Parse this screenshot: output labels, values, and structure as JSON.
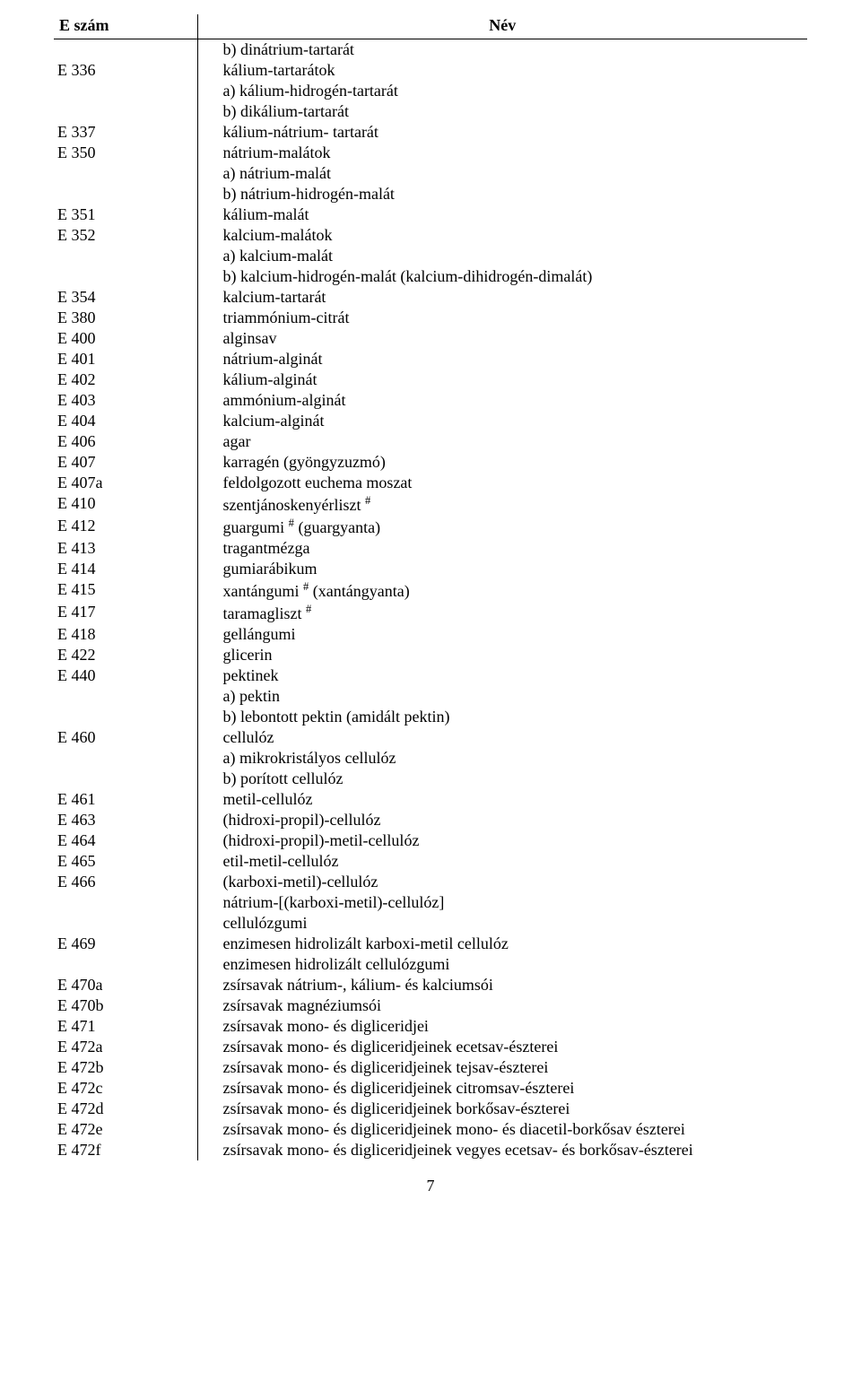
{
  "headers": {
    "code": "E szám",
    "name": "Név"
  },
  "page_number": "7",
  "rows": [
    {
      "code": "",
      "name": "b) dinátrium-tartarát"
    },
    {
      "code": "E 336",
      "name": "kálium-tartarátok"
    },
    {
      "code": "",
      "name": "a) kálium-hidrogén-tartarát"
    },
    {
      "code": "",
      "name": "b) dikálium-tartarát"
    },
    {
      "code": "E 337",
      "name": "kálium-nátrium- tartarát"
    },
    {
      "code": "E 350",
      "name": "nátrium-malátok"
    },
    {
      "code": "",
      "name": "a) nátrium-malát"
    },
    {
      "code": "",
      "name": "b) nátrium-hidrogén-malát"
    },
    {
      "code": "E 351",
      "name": "kálium-malát"
    },
    {
      "code": "E 352",
      "name": "kalcium-malátok"
    },
    {
      "code": "",
      "name": "a) kalcium-malát"
    },
    {
      "code": "",
      "name": "b) kalcium-hidrogén-malát (kalcium-dihidrogén-dimalát)"
    },
    {
      "code": "E 354",
      "name": "kalcium-tartarát"
    },
    {
      "code": "E 380",
      "name": "triammónium-citrát"
    },
    {
      "code": "E 400",
      "name": "alginsav"
    },
    {
      "code": "E 401",
      "name": "nátrium-alginát"
    },
    {
      "code": "E 402",
      "name": "kálium-alginát"
    },
    {
      "code": "E 403",
      "name": "ammónium-alginát"
    },
    {
      "code": "E 404",
      "name": "kalcium-alginát"
    },
    {
      "code": "E 406",
      "name": "agar"
    },
    {
      "code": "E 407",
      "name": "karragén (gyöngyzuzmó)"
    },
    {
      "code": "E 407a",
      "name": "feldolgozott euchema moszat"
    },
    {
      "code": "E 410",
      "name": "szentjánoskenyérliszt <sup>#</sup>"
    },
    {
      "code": "E 412",
      "name": "guargumi <sup>#</sup> (guargyanta)"
    },
    {
      "code": "E 413",
      "name": "tragantmézga"
    },
    {
      "code": "E 414",
      "name": "gumiarábikum"
    },
    {
      "code": "E 415",
      "name": "xantángumi <sup>#</sup> (xantángyanta)"
    },
    {
      "code": "E 417",
      "name": "taramagliszt <sup>#</sup>"
    },
    {
      "code": "E 418",
      "name": "gellángumi"
    },
    {
      "code": "E 422",
      "name": "glicerin"
    },
    {
      "code": "E 440",
      "name": "pektinek"
    },
    {
      "code": "",
      "name": "a) pektin"
    },
    {
      "code": "",
      "name": "b) lebontott pektin (amidált pektin)"
    },
    {
      "code": "E 460",
      "name": "cellulóz"
    },
    {
      "code": "",
      "name": "a) mikrokristályos cellulóz"
    },
    {
      "code": "",
      "name": "b) porított cellulóz"
    },
    {
      "code": "E 461",
      "name": "metil-cellulóz"
    },
    {
      "code": "E 463",
      "name": "(hidroxi-propil)-cellulóz"
    },
    {
      "code": "E 464",
      "name": "(hidroxi-propil)-metil-cellulóz"
    },
    {
      "code": "E 465",
      "name": "etil-metil-cellulóz"
    },
    {
      "code": "E 466",
      "name": "(karboxi-metil)-cellulóz"
    },
    {
      "code": "",
      "name": "nátrium-[(karboxi-metil)-cellulóz]"
    },
    {
      "code": "",
      "name": "cellulózgumi"
    },
    {
      "code": "E 469",
      "name": "enzimesen hidrolizált karboxi-metil cellulóz"
    },
    {
      "code": "",
      "name": "enzimesen hidrolizált cellulózgumi"
    },
    {
      "code": "E 470a",
      "name": "zsírsavak nátrium-, kálium- és kalciumsói"
    },
    {
      "code": "E 470b",
      "name": "zsírsavak magnéziumsói"
    },
    {
      "code": "E 471",
      "name": "zsírsavak mono- és digliceridjei"
    },
    {
      "code": "E 472a",
      "name": "zsírsavak mono- és digliceridjeinek ecetsav-észterei"
    },
    {
      "code": "E 472b",
      "name": "zsírsavak mono- és digliceridjeinek tejsav-észterei"
    },
    {
      "code": "E 472c",
      "name": "zsírsavak mono- és digliceridjeinek citromsav-észterei"
    },
    {
      "code": "E 472d",
      "name": "zsírsavak mono- és digliceridjeinek borkősav-észterei"
    },
    {
      "code": "E 472e",
      "name": "zsírsavak mono- és digliceridjeinek mono- és diacetil-borkősav észterei"
    },
    {
      "code": "E 472f",
      "name": "zsírsavak mono- és digliceridjeinek vegyes ecetsav- és borkősav-észterei"
    }
  ]
}
